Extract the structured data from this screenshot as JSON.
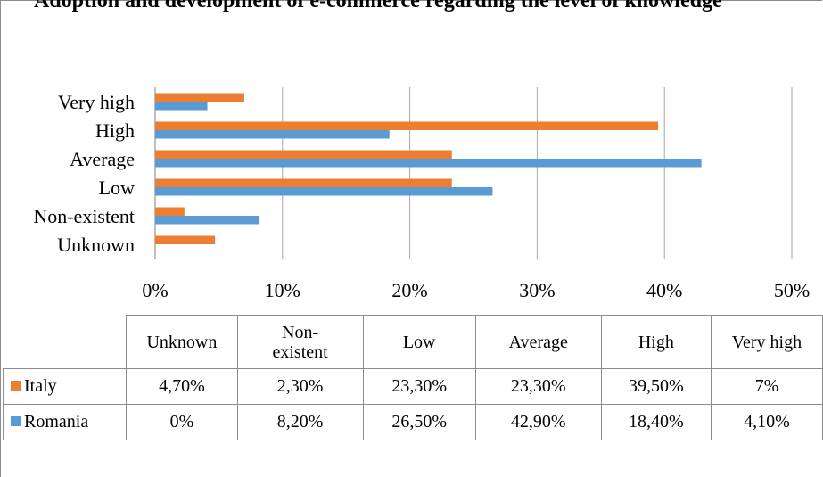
{
  "title": "Adoption and development of e-commerce regarding the level of knowledge",
  "chart_data": {
    "type": "bar",
    "orientation": "horizontal",
    "categories": [
      "Unknown",
      "Non-existent",
      "Low",
      "Average",
      "High",
      "Very high"
    ],
    "series": [
      {
        "name": "Italy",
        "values": [
          4.7,
          2.3,
          23.3,
          23.3,
          39.5,
          7
        ],
        "color": "#ED7D31"
      },
      {
        "name": "Romania",
        "values": [
          0,
          8.2,
          26.5,
          42.9,
          18.4,
          4.1
        ],
        "color": "#5B9BD5"
      }
    ],
    "xlim": [
      0,
      50
    ],
    "x_ticks": [
      "0%",
      "10%",
      "20%",
      "30%",
      "40%",
      "50%"
    ],
    "grid": true,
    "legend": "data-table"
  },
  "table": {
    "headers": [
      "Unknown",
      "Non-\nexistent",
      "Low",
      "Average",
      "High",
      "Very high"
    ],
    "rows": [
      {
        "label": "Italy",
        "cells": [
          "4,70%",
          "2,30%",
          "23,30%",
          "23,30%",
          "39,50%",
          "7%"
        ]
      },
      {
        "label": "Romania",
        "cells": [
          "0%",
          "8,20%",
          "26,50%",
          "42,90%",
          "18,40%",
          "4,10%"
        ]
      }
    ]
  }
}
